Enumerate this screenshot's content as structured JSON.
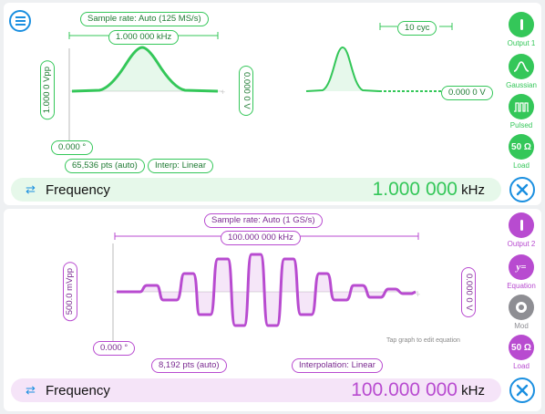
{
  "colors": {
    "green": "#34c759",
    "purple": "#b84bd0",
    "blue": "#1a8fe0",
    "gray": "#8e8e93"
  },
  "menu_icon": "hamburger-menu-icon",
  "channel1": {
    "sample_rate": "Sample rate: Auto (125 MS/s)",
    "frequency_span": "1.000 000 kHz",
    "amplitude": "1.000 0 Vpp",
    "offset_v": "0.000 0 V",
    "phase": "0.000 °",
    "points": "65,536 pts (auto)",
    "interp": "Interp: Linear",
    "burst_cycles": "10 cyc",
    "burst_idle": "0.000 0 V",
    "freq_label": "Frequency",
    "freq_value": "1.000 000",
    "freq_unit": "kHz",
    "controls": [
      {
        "icon": "power-icon",
        "label": "Output 1",
        "text": ""
      },
      {
        "icon": "gaussian-icon",
        "label": "Gaussian",
        "text": ""
      },
      {
        "icon": "pulse-train-icon",
        "label": "Pulsed",
        "text": ""
      },
      {
        "icon": "load-icon",
        "label": "Load",
        "text": "50 Ω"
      }
    ]
  },
  "channel2": {
    "sample_rate": "Sample rate: Auto (1 GS/s)",
    "frequency_span": "100.000 000 kHz",
    "amplitude": "500.0 mVpp",
    "offset_v": "0.000 0 V",
    "phase": "0.000 °",
    "points": "8,192 pts (auto)",
    "interp": "Interpolation: Linear",
    "hint": "Tap graph to edit equation",
    "freq_label": "Frequency",
    "freq_value": "100.000 000",
    "freq_unit": "kHz",
    "controls": [
      {
        "icon": "power-icon",
        "label": "Output 2",
        "text": ""
      },
      {
        "icon": "equation-icon",
        "label": "Equation",
        "text": "y="
      },
      {
        "icon": "mod-icon",
        "label": "Mod",
        "text": ""
      },
      {
        "icon": "load-icon",
        "label": "Load",
        "text": "50 Ω"
      }
    ]
  }
}
